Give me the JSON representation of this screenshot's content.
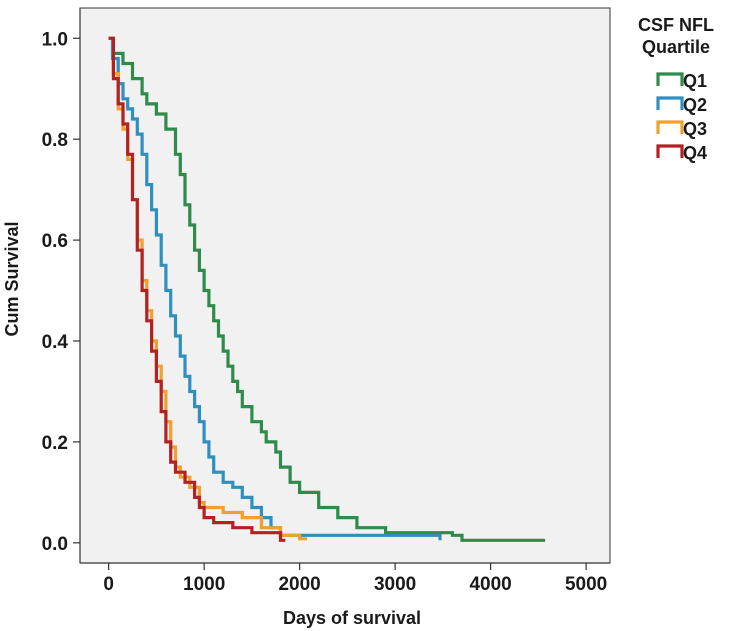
{
  "chart_data": {
    "type": "line",
    "step": true,
    "xlabel": "Days of survival",
    "ylabel": "Cum Survival",
    "xlim": [
      -300,
      5250
    ],
    "ylim": [
      -0.04,
      1.06
    ],
    "xticks": [
      0,
      1000,
      2000,
      3000,
      4000,
      5000
    ],
    "yticks": [
      0.0,
      0.2,
      0.4,
      0.6,
      0.8,
      1.0
    ],
    "ytick_labels": [
      "0.0",
      "0.2",
      "0.4",
      "0.6",
      "0.8",
      "1.0"
    ],
    "grid": false,
    "background": "#f1f1f1",
    "legend": {
      "title_lines": [
        "CSF NFL",
        "Quartile"
      ],
      "placement": "right"
    },
    "series": [
      {
        "name": "Q1",
        "color": "#2e8b4a",
        "points": [
          [
            0,
            1.0
          ],
          [
            50,
            0.97
          ],
          [
            150,
            0.95
          ],
          [
            250,
            0.92
          ],
          [
            350,
            0.89
          ],
          [
            400,
            0.87
          ],
          [
            500,
            0.85
          ],
          [
            600,
            0.82
          ],
          [
            700,
            0.77
          ],
          [
            750,
            0.73
          ],
          [
            800,
            0.67
          ],
          [
            850,
            0.63
          ],
          [
            900,
            0.58
          ],
          [
            950,
            0.54
          ],
          [
            1000,
            0.5
          ],
          [
            1050,
            0.47
          ],
          [
            1100,
            0.44
          ],
          [
            1150,
            0.41
          ],
          [
            1200,
            0.38
          ],
          [
            1250,
            0.35
          ],
          [
            1300,
            0.32
          ],
          [
            1350,
            0.3
          ],
          [
            1400,
            0.27
          ],
          [
            1500,
            0.24
          ],
          [
            1600,
            0.22
          ],
          [
            1650,
            0.2
          ],
          [
            1750,
            0.18
          ],
          [
            1800,
            0.15
          ],
          [
            1900,
            0.12
          ],
          [
            2000,
            0.1
          ],
          [
            2200,
            0.07
          ],
          [
            2400,
            0.05
          ],
          [
            2600,
            0.03
          ],
          [
            2900,
            0.02
          ],
          [
            3600,
            0.015
          ],
          [
            3700,
            0.005
          ],
          [
            4570,
            0.005
          ]
        ]
      },
      {
        "name": "Q2",
        "color": "#2f8fbf",
        "points": [
          [
            0,
            1.0
          ],
          [
            40,
            0.96
          ],
          [
            100,
            0.91
          ],
          [
            150,
            0.88
          ],
          [
            200,
            0.86
          ],
          [
            250,
            0.84
          ],
          [
            300,
            0.81
          ],
          [
            350,
            0.77
          ],
          [
            400,
            0.71
          ],
          [
            450,
            0.66
          ],
          [
            500,
            0.61
          ],
          [
            550,
            0.55
          ],
          [
            600,
            0.5
          ],
          [
            650,
            0.45
          ],
          [
            700,
            0.41
          ],
          [
            750,
            0.37
          ],
          [
            800,
            0.33
          ],
          [
            850,
            0.3
          ],
          [
            900,
            0.27
          ],
          [
            950,
            0.24
          ],
          [
            1000,
            0.2
          ],
          [
            1050,
            0.17
          ],
          [
            1100,
            0.14
          ],
          [
            1200,
            0.12
          ],
          [
            1300,
            0.11
          ],
          [
            1400,
            0.09
          ],
          [
            1500,
            0.07
          ],
          [
            1600,
            0.05
          ],
          [
            1700,
            0.03
          ],
          [
            1800,
            0.015
          ],
          [
            3470,
            0.005
          ]
        ]
      },
      {
        "name": "Q3",
        "color": "#f0a030",
        "points": [
          [
            0,
            1.0
          ],
          [
            50,
            0.93
          ],
          [
            100,
            0.86
          ],
          [
            150,
            0.82
          ],
          [
            200,
            0.76
          ],
          [
            250,
            0.68
          ],
          [
            300,
            0.6
          ],
          [
            350,
            0.52
          ],
          [
            400,
            0.46
          ],
          [
            450,
            0.4
          ],
          [
            500,
            0.35
          ],
          [
            550,
            0.3
          ],
          [
            600,
            0.24
          ],
          [
            650,
            0.19
          ],
          [
            700,
            0.15
          ],
          [
            750,
            0.13
          ],
          [
            850,
            0.11
          ],
          [
            950,
            0.08
          ],
          [
            1000,
            0.07
          ],
          [
            1200,
            0.06
          ],
          [
            1400,
            0.05
          ],
          [
            1600,
            0.03
          ],
          [
            1800,
            0.015
          ],
          [
            2000,
            0.008
          ],
          [
            2060,
            0.005
          ]
        ]
      },
      {
        "name": "Q4",
        "color": "#b22222",
        "points": [
          [
            0,
            1.0
          ],
          [
            50,
            0.92
          ],
          [
            100,
            0.87
          ],
          [
            150,
            0.83
          ],
          [
            200,
            0.77
          ],
          [
            250,
            0.68
          ],
          [
            300,
            0.58
          ],
          [
            350,
            0.5
          ],
          [
            400,
            0.44
          ],
          [
            450,
            0.38
          ],
          [
            500,
            0.32
          ],
          [
            550,
            0.26
          ],
          [
            600,
            0.2
          ],
          [
            650,
            0.16
          ],
          [
            700,
            0.14
          ],
          [
            800,
            0.12
          ],
          [
            900,
            0.09
          ],
          [
            950,
            0.07
          ],
          [
            1000,
            0.05
          ],
          [
            1100,
            0.04
          ],
          [
            1300,
            0.03
          ],
          [
            1500,
            0.02
          ],
          [
            1800,
            0.005
          ],
          [
            1850,
            0.005
          ]
        ]
      }
    ]
  }
}
